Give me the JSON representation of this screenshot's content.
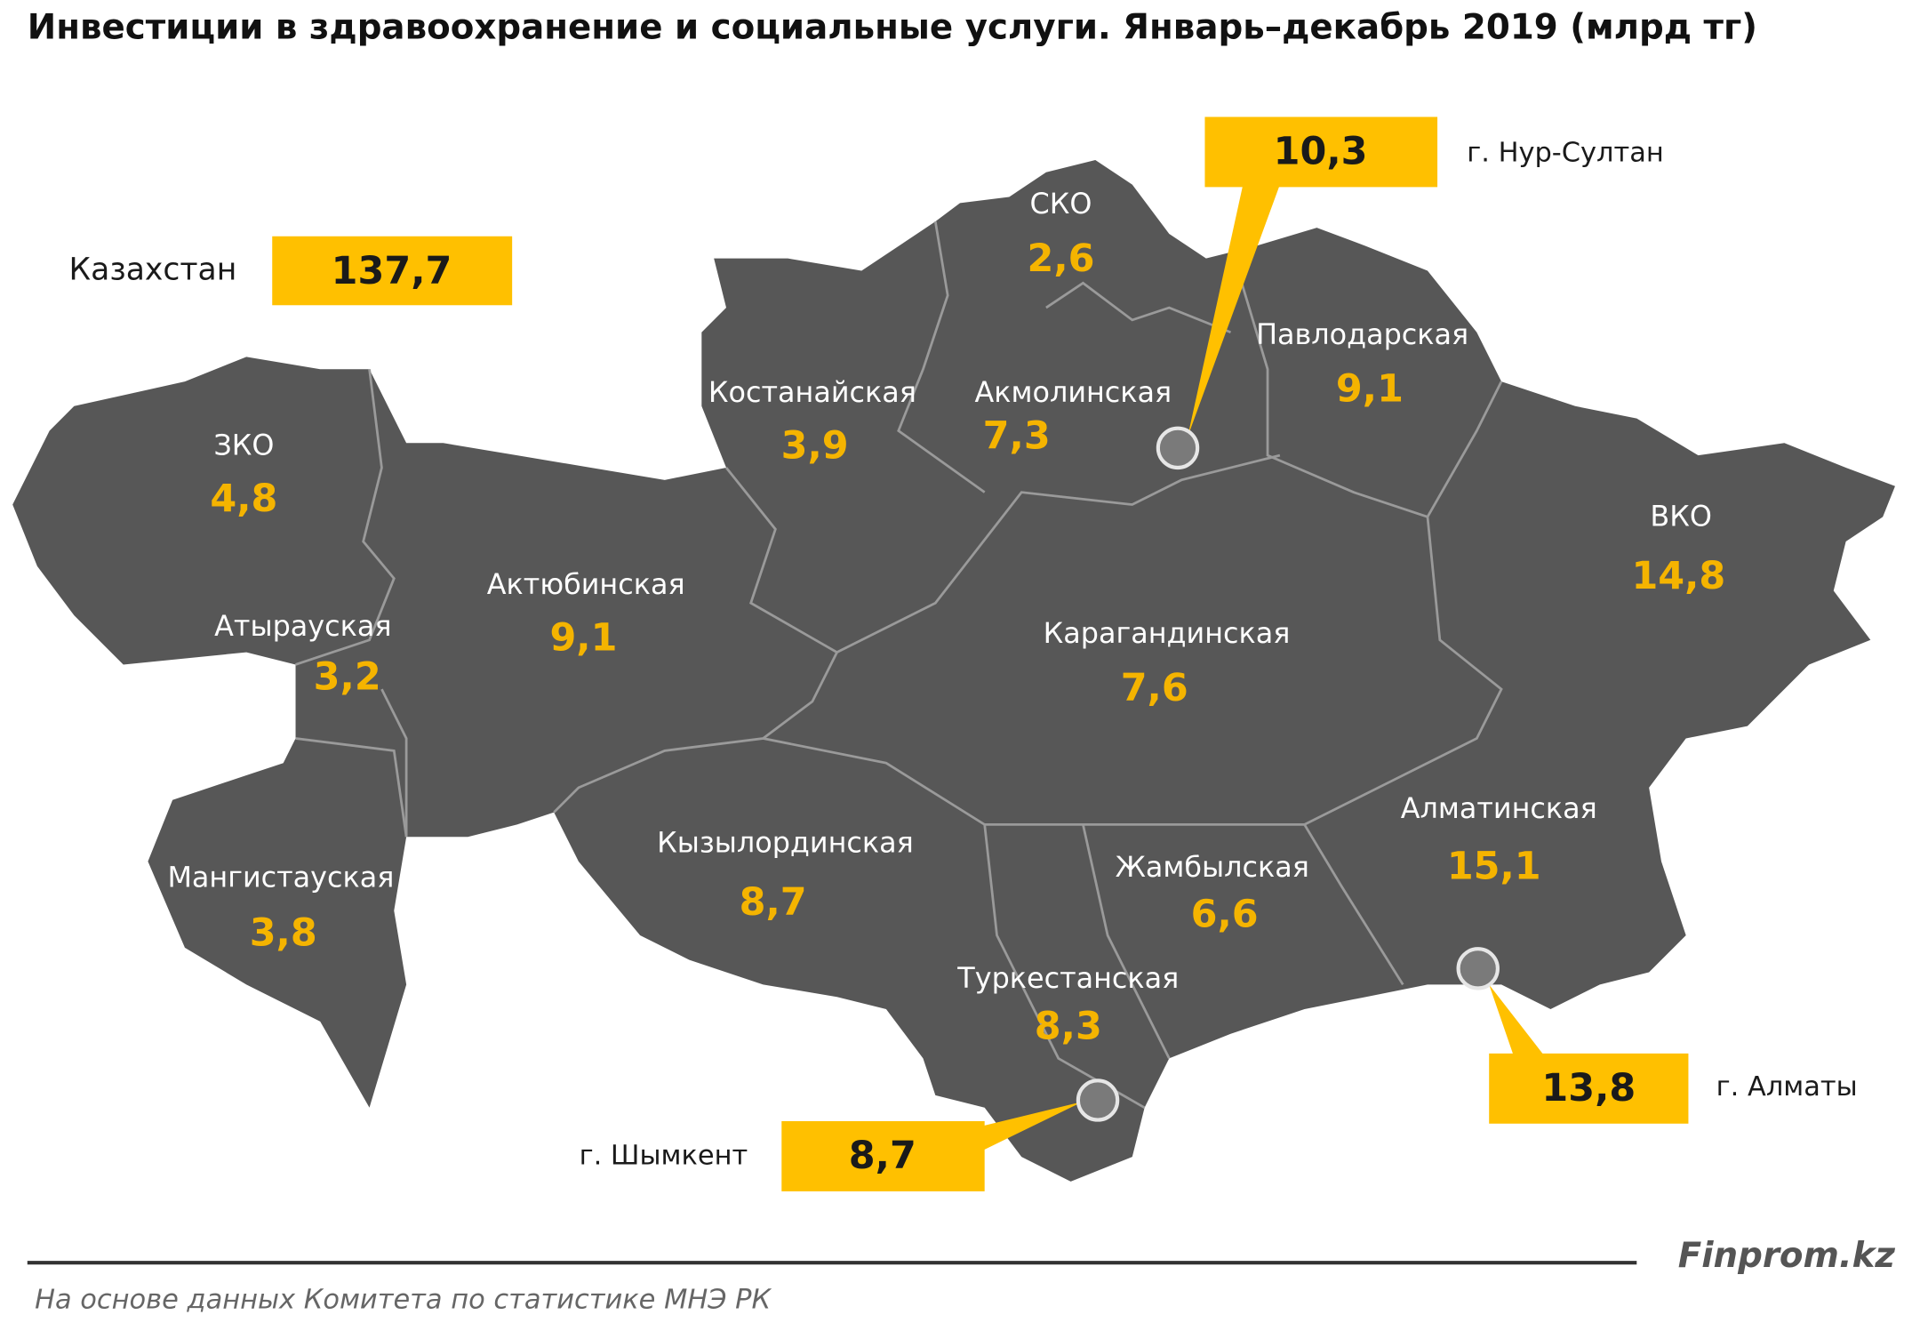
{
  "title": "Инвестиции в здравоохранение и социальные услуги. Январь–декабрь 2019  (млрд тг)",
  "country": {
    "name": "Казахстан",
    "value": "137,7"
  },
  "regions": [
    {
      "name": "ЗКО",
      "value": "4,8"
    },
    {
      "name": "Атырауская",
      "value": "3,2"
    },
    {
      "name": "Мангистауская",
      "value": "3,8"
    },
    {
      "name": "Актюбинская",
      "value": "9,1"
    },
    {
      "name": "Костанайская",
      "value": "3,9"
    },
    {
      "name": "СКО",
      "value": "2,6"
    },
    {
      "name": "Акмолинская",
      "value": "7,3"
    },
    {
      "name": "Павлодарская",
      "value": "9,1"
    },
    {
      "name": "ВКО",
      "value": "14,8"
    },
    {
      "name": "Карагандинская",
      "value": "7,6"
    },
    {
      "name": "Кызылординская",
      "value": "8,7"
    },
    {
      "name": "Жамбылская",
      "value": "6,6"
    },
    {
      "name": "Туркестанская",
      "value": "8,3"
    },
    {
      "name": "Алматинская",
      "value": "15,1"
    }
  ],
  "cities": [
    {
      "name": "г. Нур-Султан",
      "value": "10,3"
    },
    {
      "name": "г. Алматы",
      "value": "13,8"
    },
    {
      "name": "г. Шымкент",
      "value": "8,7"
    }
  ],
  "brand": "Finprom.kz",
  "source": "На основе данных  Комитета по статистике МНЭ РК"
}
